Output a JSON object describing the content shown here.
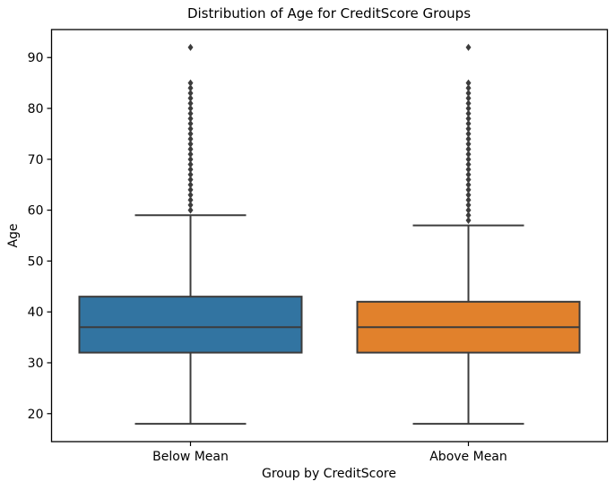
{
  "chart_data": {
    "type": "boxplot",
    "title": "Distribution of Age for CreditScore Groups",
    "xlabel": "Group by CreditScore",
    "ylabel": "Age",
    "categories": [
      "Below Mean",
      "Above Mean"
    ],
    "yticks": [
      20,
      30,
      40,
      50,
      60,
      70,
      80,
      90
    ],
    "ylim": [
      14.5,
      95.5
    ],
    "grid": false,
    "legend": "none",
    "spine_color": "#000000",
    "edge_color": "#3c3c3c",
    "series": [
      {
        "name": "Below Mean",
        "box_color": "#3274a1",
        "whisker_low": 18,
        "q1": 32,
        "median": 37,
        "q3": 43,
        "whisker_high": 59,
        "outliers": [
          60,
          61,
          62,
          63,
          64,
          65,
          66,
          67,
          68,
          69,
          70,
          71,
          72,
          73,
          74,
          75,
          76,
          77,
          78,
          79,
          80,
          81,
          82,
          83,
          84,
          85,
          92
        ]
      },
      {
        "name": "Above Mean",
        "box_color": "#e1812c",
        "whisker_low": 18,
        "q1": 32,
        "median": 37,
        "q3": 42,
        "whisker_high": 57,
        "outliers": [
          58,
          59,
          60,
          61,
          62,
          63,
          64,
          65,
          66,
          67,
          68,
          69,
          70,
          71,
          72,
          73,
          74,
          75,
          76,
          77,
          78,
          79,
          80,
          81,
          82,
          83,
          84,
          85,
          92
        ]
      }
    ]
  }
}
